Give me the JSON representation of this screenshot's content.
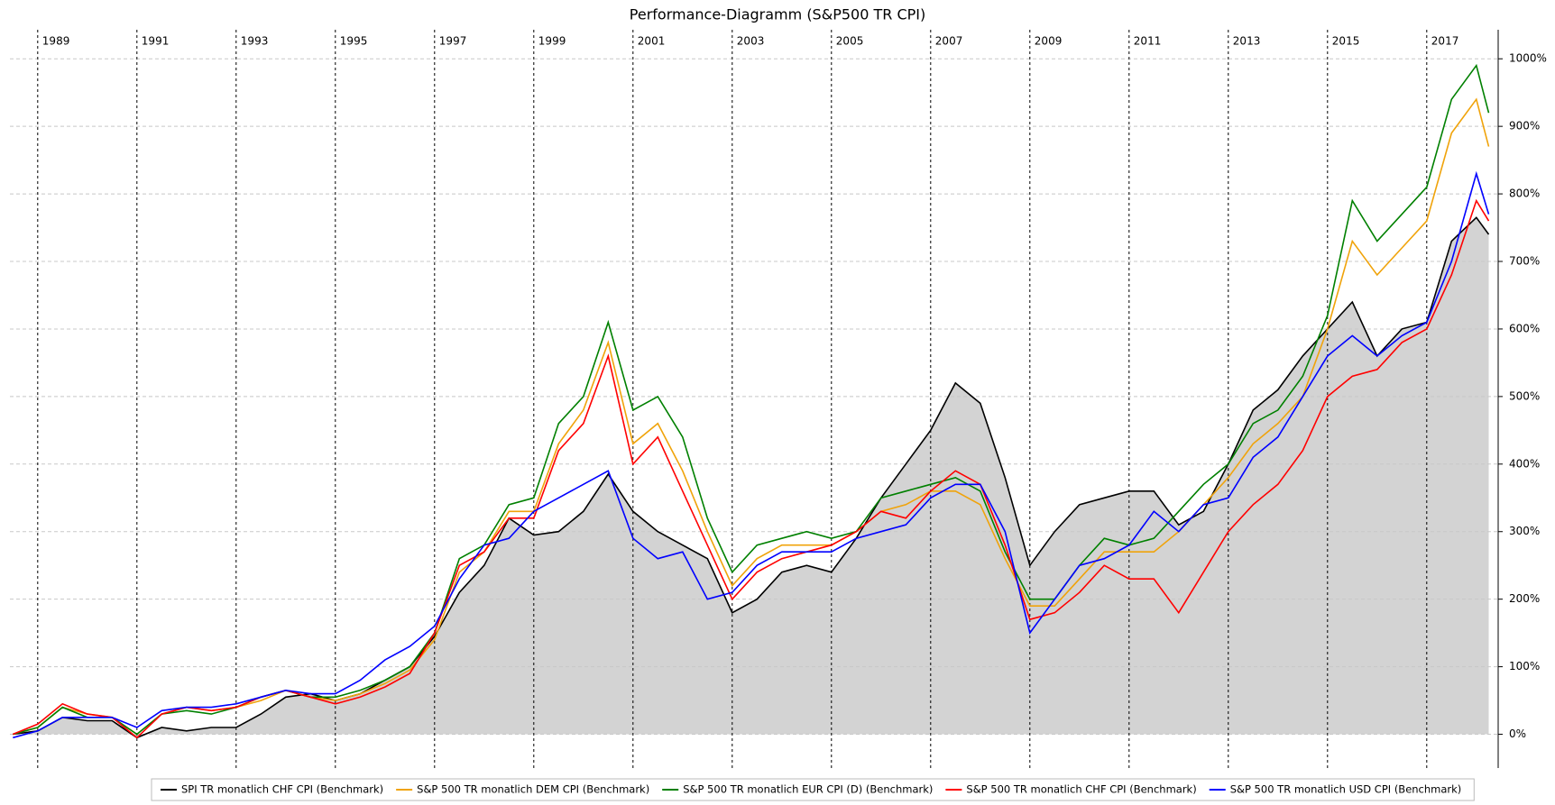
{
  "chart_data": {
    "type": "line",
    "title": "Performance-Diagramm (S&P500 TR CPI)",
    "x": [
      1988.5,
      1989,
      1989.5,
      1990,
      1990.5,
      1991,
      1991.5,
      1992,
      1992.5,
      1993,
      1993.5,
      1994,
      1994.5,
      1995,
      1995.5,
      1996,
      1996.5,
      1997,
      1997.5,
      1998,
      1998.5,
      1999,
      1999.5,
      2000,
      2000.5,
      2001,
      2001.5,
      2002,
      2002.5,
      2003,
      2003.5,
      2004,
      2004.5,
      2005,
      2005.5,
      2006,
      2006.5,
      2007,
      2007.5,
      2008,
      2008.5,
      2009,
      2009.5,
      2010,
      2010.5,
      2011,
      2011.5,
      2012,
      2012.5,
      2013,
      2013.5,
      2014,
      2014.5,
      2015,
      2015.5,
      2016,
      2016.5,
      2017,
      2017.5,
      2018,
      2018.25
    ],
    "series": [
      {
        "name": "SPI TR monatlich CHF CPI (Benchmark)",
        "color": "#000000",
        "fill": "#d3d3d3",
        "values": [
          0,
          5,
          25,
          20,
          20,
          -5,
          10,
          5,
          10,
          10,
          30,
          55,
          60,
          50,
          60,
          80,
          100,
          145,
          210,
          250,
          320,
          295,
          300,
          330,
          385,
          330,
          300,
          280,
          260,
          180,
          200,
          240,
          250,
          240,
          290,
          350,
          400,
          450,
          520,
          490,
          380,
          250,
          300,
          340,
          350,
          360,
          360,
          310,
          330,
          400,
          480,
          510,
          560,
          600,
          640,
          560,
          600,
          610,
          730,
          765,
          740
        ]
      },
      {
        "name": "S&P 500 TR monatlich DEM CPI (Benchmark)",
        "color": "#f0a30a",
        "values": [
          0,
          10,
          40,
          30,
          25,
          0,
          30,
          40,
          35,
          40,
          50,
          65,
          55,
          50,
          60,
          75,
          95,
          140,
          240,
          270,
          330,
          330,
          430,
          480,
          580,
          430,
          460,
          390,
          300,
          220,
          260,
          280,
          280,
          280,
          300,
          330,
          340,
          360,
          360,
          340,
          260,
          190,
          190,
          230,
          270,
          270,
          270,
          300,
          340,
          380,
          430,
          460,
          500,
          600,
          730,
          680,
          720,
          760,
          890,
          940,
          870
        ]
      },
      {
        "name": "S&P 500 TR monatlich EUR CPI (D) (Benchmark)",
        "color": "#008000",
        "values": [
          0,
          10,
          40,
          25,
          25,
          0,
          30,
          35,
          30,
          40,
          55,
          65,
          55,
          55,
          65,
          80,
          100,
          150,
          260,
          280,
          340,
          350,
          460,
          500,
          610,
          480,
          500,
          440,
          320,
          240,
          280,
          290,
          300,
          290,
          300,
          350,
          360,
          370,
          380,
          360,
          270,
          200,
          200,
          250,
          290,
          280,
          290,
          330,
          370,
          400,
          460,
          480,
          530,
          620,
          790,
          730,
          770,
          810,
          940,
          990,
          920
        ]
      },
      {
        "name": "S&P 500 TR monatlich CHF CPI (Benchmark)",
        "color": "#ff0000",
        "values": [
          0,
          15,
          45,
          30,
          25,
          -5,
          30,
          40,
          35,
          40,
          55,
          65,
          55,
          45,
          55,
          70,
          90,
          150,
          250,
          270,
          320,
          320,
          420,
          460,
          560,
          400,
          440,
          360,
          280,
          200,
          240,
          260,
          270,
          280,
          300,
          330,
          320,
          360,
          390,
          370,
          280,
          170,
          180,
          210,
          250,
          230,
          230,
          180,
          240,
          300,
          340,
          370,
          420,
          500,
          530,
          540,
          580,
          600,
          680,
          790,
          760
        ]
      },
      {
        "name": "S&P 500 TR monatlich USD CPI (Benchmark)",
        "color": "#0000ff",
        "values": [
          -5,
          5,
          25,
          25,
          25,
          10,
          35,
          40,
          40,
          45,
          55,
          65,
          60,
          60,
          80,
          110,
          130,
          160,
          230,
          280,
          290,
          330,
          350,
          370,
          390,
          290,
          260,
          270,
          200,
          210,
          250,
          270,
          270,
          270,
          290,
          300,
          310,
          350,
          370,
          370,
          300,
          150,
          200,
          250,
          260,
          280,
          330,
          300,
          340,
          350,
          410,
          440,
          500,
          560,
          590,
          560,
          590,
          610,
          700,
          830,
          770
        ]
      }
    ],
    "xlim": [
      1988.44,
      2018.44
    ],
    "xticks": [
      1989,
      1991,
      1993,
      1995,
      1997,
      1999,
      2001,
      2003,
      2005,
      2007,
      2009,
      2011,
      2013,
      2015,
      2017
    ],
    "ylim": [
      -50,
      1043
    ],
    "yticks": [
      {
        "value": 0,
        "label": "0%"
      },
      {
        "value": 100,
        "label": "100%"
      },
      {
        "value": 200,
        "label": "200%"
      },
      {
        "value": 300,
        "label": "300%"
      },
      {
        "value": 400,
        "label": "400%"
      },
      {
        "value": 500,
        "label": "500%"
      },
      {
        "value": 600,
        "label": "600%"
      },
      {
        "value": 700,
        "label": "700%"
      },
      {
        "value": 800,
        "label": "800%"
      },
      {
        "value": 900,
        "label": "900%"
      },
      {
        "value": 1000,
        "label": "1000%"
      }
    ],
    "grid": true,
    "legend": "bottom"
  }
}
